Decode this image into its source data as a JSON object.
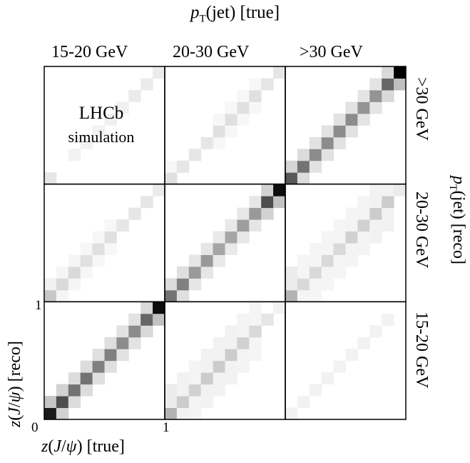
{
  "chart_data": {
    "type": "heatmap",
    "title": "p_T(jet) [true]",
    "ylabel_right": "p_T(jet) [reco]",
    "xlabel": "z(J/ψ) [true]",
    "ylabel": "z(J/ψ) [reco]",
    "columns": [
      "15-20 GeV",
      "20-30 GeV",
      ">30 GeV"
    ],
    "rows": [
      ">30 GeV",
      "20-30 GeV",
      "15-20 GeV"
    ],
    "x_ticks": [
      "0",
      "1"
    ],
    "y_ticks": [
      "1"
    ],
    "xlim": [
      0,
      1
    ],
    "ylim": [
      0,
      1
    ],
    "bins_per_panel": 10,
    "colormap": "grayscale (white = low, black = high)",
    "annotation": [
      "LHCb",
      "simulation"
    ],
    "panels": [
      {
        "row": ">30 GeV",
        "col": "15-20 GeV",
        "diagonal": [
          0.1,
          0.0,
          0.05,
          0.05,
          0.05,
          0.06,
          0.06,
          0.08,
          0.08,
          0.08
        ],
        "width": 1
      },
      {
        "row": ">30 GeV",
        "col": "20-30 GeV",
        "diagonal": [
          0.12,
          0.1,
          0.1,
          0.1,
          0.12,
          0.12,
          0.12,
          0.12,
          0.1,
          0.1
        ],
        "width": 1
      },
      {
        "row": ">30 GeV",
        "col": ">30 GeV",
        "diagonal": [
          0.65,
          0.55,
          0.45,
          0.45,
          0.45,
          0.45,
          0.42,
          0.42,
          0.6,
          1.0
        ],
        "width": 1
      },
      {
        "row": "20-30 GeV",
        "col": "15-20 GeV",
        "diagonal": [
          0.22,
          0.15,
          0.15,
          0.12,
          0.12,
          0.12,
          0.1,
          0.1,
          0.1,
          0.08
        ],
        "width": 1
      },
      {
        "row": "20-30 GeV",
        "col": "20-30 GeV",
        "diagonal": [
          0.55,
          0.5,
          0.4,
          0.4,
          0.35,
          0.35,
          0.38,
          0.4,
          0.7,
          0.95
        ],
        "width": 1
      },
      {
        "row": "20-30 GeV",
        "col": ">30 GeV",
        "diagonal": [
          0.3,
          0.15,
          0.15,
          0.15,
          0.15,
          0.18,
          0.18,
          0.2,
          0.2,
          0.08
        ],
        "width": 2
      },
      {
        "row": "15-20 GeV",
        "col": "15-20 GeV",
        "diagonal": [
          0.9,
          0.7,
          0.55,
          0.55,
          0.5,
          0.5,
          0.45,
          0.45,
          0.6,
          0.95
        ],
        "width": 1
      },
      {
        "row": "15-20 GeV",
        "col": "20-30 GeV",
        "diagonal": [
          0.3,
          0.2,
          0.18,
          0.2,
          0.2,
          0.2,
          0.18,
          0.15,
          0.1,
          0.05
        ],
        "width": 2
      },
      {
        "row": "15-20 GeV",
        "col": ">30 GeV",
        "diagonal": [
          0.05,
          0.05,
          0.05,
          0.05,
          0.05,
          0.05,
          0.05,
          0.05,
          0.05,
          0.0
        ],
        "width": 1
      }
    ],
    "grid": true,
    "legend": "none"
  }
}
